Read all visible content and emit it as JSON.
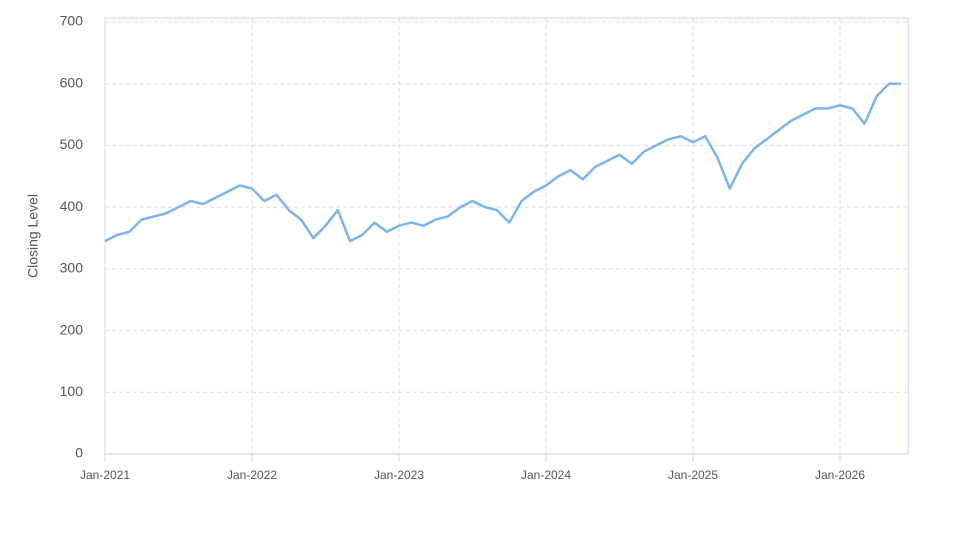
{
  "chart_data": {
    "type": "line",
    "y_label": "Closing Level",
    "x": [
      "2021-01",
      "2021-02",
      "2021-03",
      "2021-04",
      "2021-05",
      "2021-06",
      "2021-07",
      "2021-08",
      "2021-09",
      "2021-10",
      "2021-11",
      "2021-12",
      "2022-01",
      "2022-02",
      "2022-03",
      "2022-04",
      "2022-05",
      "2022-06",
      "2022-07",
      "2022-08",
      "2022-09",
      "2022-10",
      "2022-11",
      "2022-12",
      "2023-01",
      "2023-02",
      "2023-03",
      "2023-04",
      "2023-05",
      "2023-06",
      "2023-07",
      "2023-08",
      "2023-09",
      "2023-10",
      "2023-11",
      "2023-12",
      "2024-01",
      "2024-02",
      "2024-03",
      "2024-04",
      "2024-05",
      "2024-06",
      "2024-07",
      "2024-08",
      "2024-09",
      "2024-10",
      "2024-11",
      "2024-12",
      "2025-01",
      "2025-02",
      "2025-03",
      "2025-04",
      "2025-05",
      "2025-06",
      "2025-07",
      "2025-08",
      "2025-09",
      "2025-10",
      "2025-11",
      "2025-12",
      "2026-01",
      "2026-02",
      "2026-03",
      "2026-04",
      "2026-05",
      "2026-06"
    ],
    "series": [
      {
        "name": "Closing Level",
        "color": "#7cb5ec",
        "values": [
          345,
          355,
          360,
          380,
          385,
          390,
          400,
          410,
          405,
          415,
          425,
          435,
          430,
          410,
          420,
          395,
          380,
          350,
          370,
          395,
          345,
          355,
          375,
          360,
          370,
          375,
          370,
          380,
          385,
          400,
          410,
          400,
          395,
          375,
          410,
          425,
          435,
          450,
          460,
          445,
          465,
          475,
          485,
          470,
          490,
          500,
          510,
          515,
          505,
          515,
          480,
          430,
          470,
          495,
          510,
          525,
          540,
          550,
          560,
          560,
          565,
          560,
          535,
          580,
          600,
          600
        ]
      }
    ],
    "xlim": [
      "2021-01",
      "2026-06"
    ],
    "xticks": [
      {
        "value": "2021-01",
        "label": "Jan-2021"
      },
      {
        "value": "2022-01",
        "label": "Jan-2022"
      },
      {
        "value": "2023-01",
        "label": "Jan-2023"
      },
      {
        "value": "2024-01",
        "label": "Jan-2024"
      },
      {
        "value": "2025-01",
        "label": "Jan-2025"
      },
      {
        "value": "2026-01",
        "label": "Jan-2026"
      }
    ],
    "ylim": [
      0,
      700
    ],
    "yticks": [
      0,
      100,
      200,
      300,
      400,
      500,
      600,
      700
    ],
    "grid": true
  }
}
